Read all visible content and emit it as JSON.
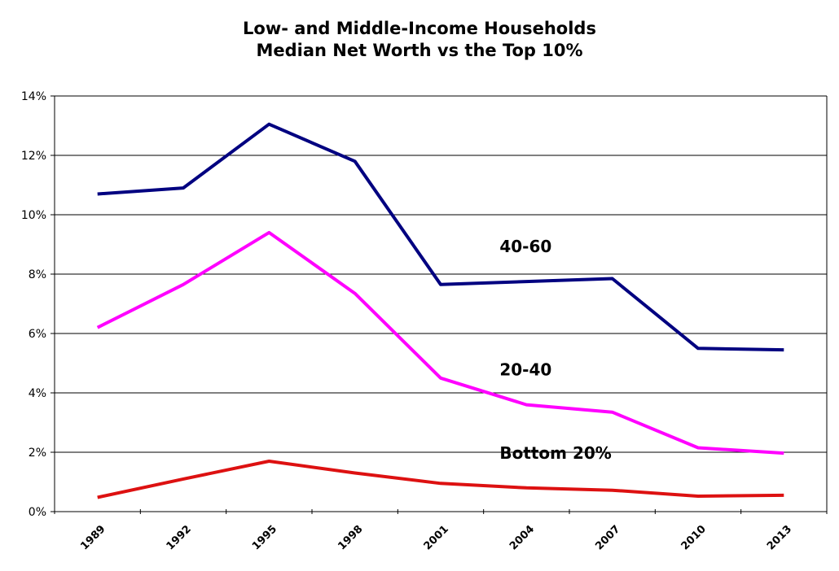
{
  "chart_data": {
    "type": "line",
    "title": "Low- and Middle-Income Households",
    "subtitle": "Median Net Worth vs the Top 10%",
    "xlabel": "",
    "ylabel": "",
    "x": [
      "1989",
      "1992",
      "1995",
      "1998",
      "2001",
      "2004",
      "2007",
      "2010",
      "2013"
    ],
    "ylim": [
      0,
      14
    ],
    "yticks": [
      0,
      2,
      4,
      6,
      8,
      10,
      12,
      14
    ],
    "ytick_labels": [
      "0%",
      "2%",
      "4%",
      "6%",
      "8%",
      "10%",
      "12%",
      "14%"
    ],
    "grid": true,
    "legend": "none",
    "series": [
      {
        "name": "40-60",
        "color": "#000080",
        "values": [
          10.7,
          10.9,
          13.05,
          11.8,
          7.65,
          7.75,
          7.85,
          5.5,
          5.45
        ]
      },
      {
        "name": "20-40",
        "color": "#ff00ff",
        "values": [
          6.2,
          7.65,
          9.4,
          7.35,
          4.5,
          3.6,
          3.35,
          2.15,
          1.97
        ]
      },
      {
        "name": "Bottom 20%",
        "color": "#dd1111",
        "values": [
          0.48,
          1.1,
          1.7,
          1.3,
          0.95,
          0.8,
          0.72,
          0.52,
          0.55
        ]
      }
    ]
  }
}
